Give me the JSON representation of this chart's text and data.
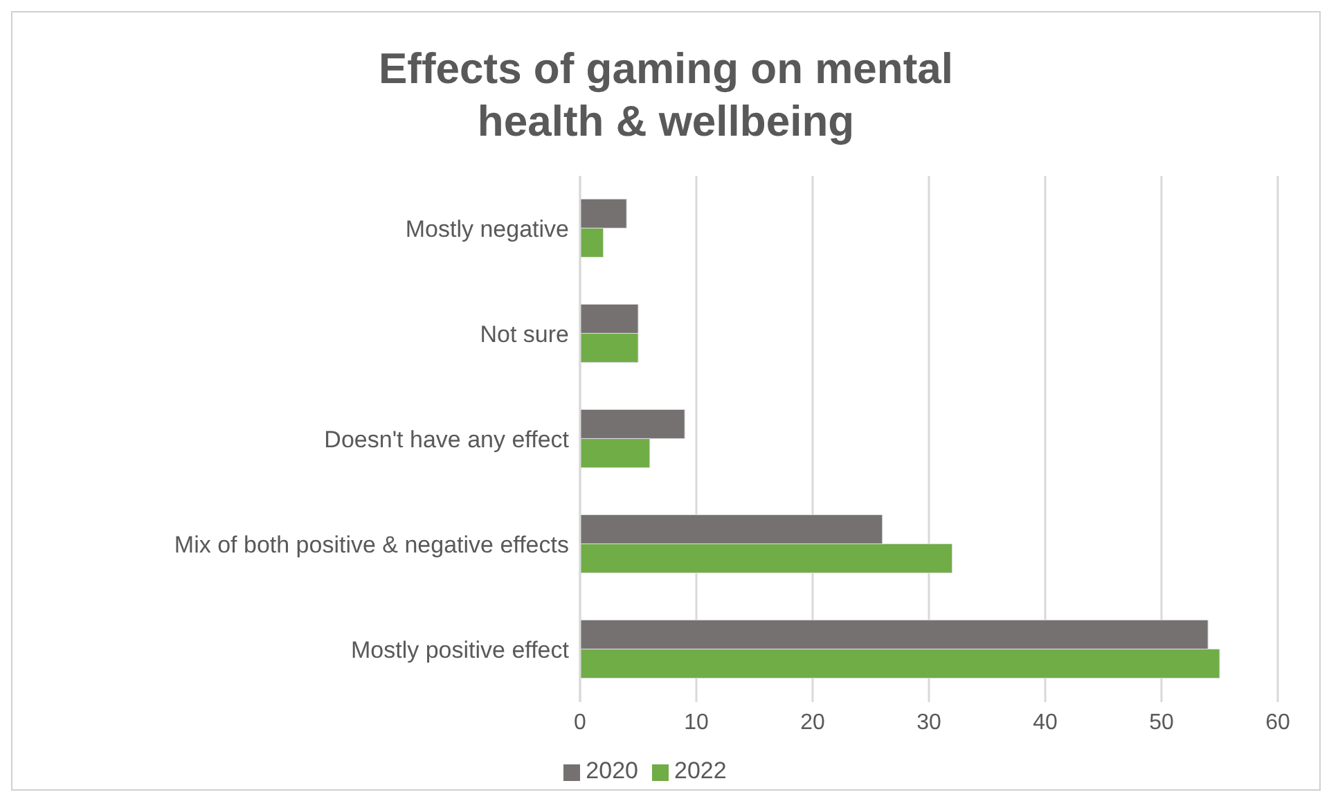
{
  "chart_data": {
    "type": "bar",
    "orientation": "horizontal",
    "title": "Effects of gaming on mental health & wellbeing",
    "categories": [
      "Mostly negative",
      "Not sure",
      "Doesn't have any effect",
      "Mix of both positive & negative effects",
      "Mostly positive effect"
    ],
    "series": [
      {
        "name": "2020",
        "color": "#767171",
        "values": [
          4,
          5,
          9,
          26,
          54
        ]
      },
      {
        "name": "2022",
        "color": "#70ad47",
        "values": [
          2,
          5,
          6,
          32,
          55
        ]
      }
    ],
    "xlim": [
      0,
      60
    ],
    "xticks": [
      0,
      10,
      20,
      30,
      40,
      50,
      60
    ],
    "grid": "x",
    "legend": "bottom"
  }
}
